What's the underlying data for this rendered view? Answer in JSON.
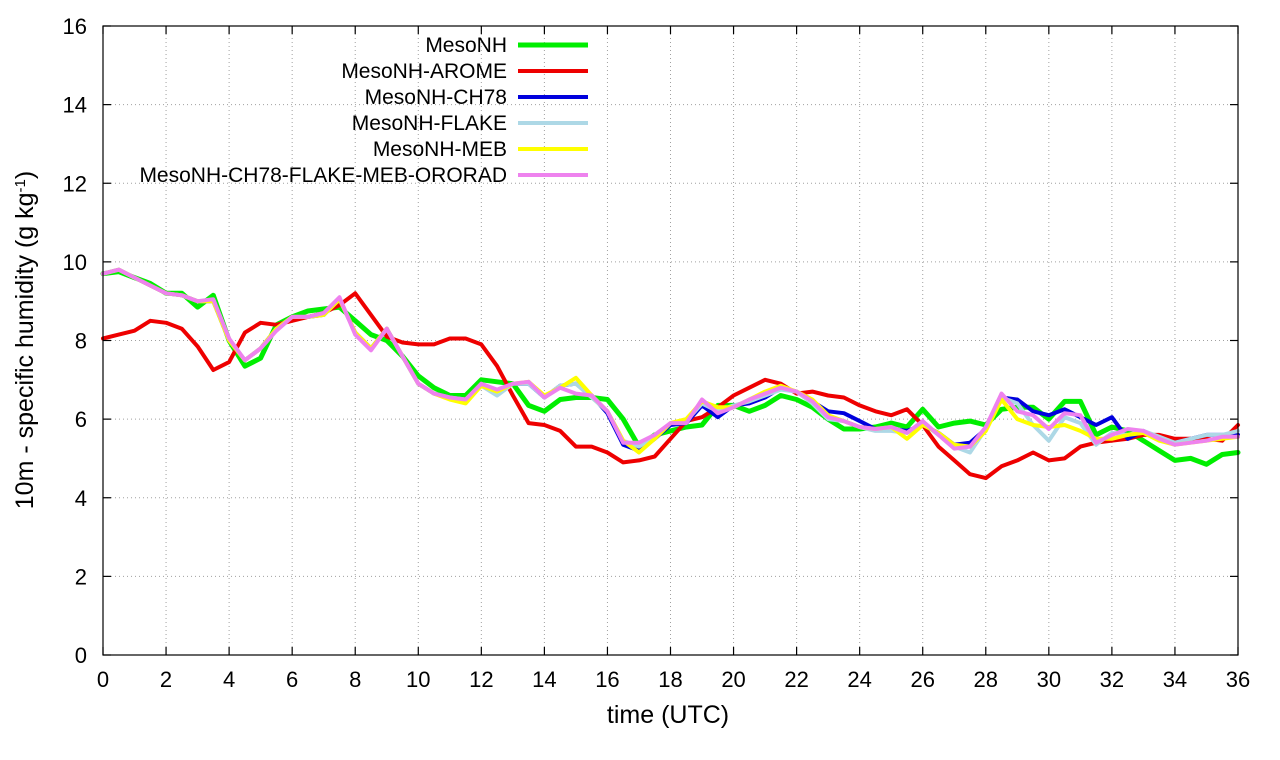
{
  "chart_data": {
    "type": "line",
    "title": "",
    "xlabel": "time (UTC)",
    "ylabel": "10m - specific humidity (g kg",
    "ylabel_superscript": "-1",
    "ylabel_suffix": ")",
    "xlim": [
      0,
      36
    ],
    "ylim": [
      0,
      16
    ],
    "xticks": [
      0,
      2,
      4,
      6,
      8,
      10,
      12,
      14,
      16,
      18,
      20,
      22,
      24,
      26,
      28,
      30,
      32,
      34,
      36
    ],
    "yticks": [
      0,
      2,
      4,
      6,
      8,
      10,
      12,
      14,
      16
    ],
    "grid": true,
    "legend_position": "top-left",
    "x": [
      0,
      0.5,
      1,
      1.5,
      2,
      2.5,
      3,
      3.5,
      4,
      4.5,
      5,
      5.5,
      6,
      6.5,
      7,
      7.5,
      8,
      8.5,
      9,
      9.5,
      10,
      10.5,
      11,
      11.5,
      12,
      12.5,
      13,
      13.5,
      14,
      14.5,
      15,
      15.5,
      16,
      16.5,
      17,
      17.5,
      18,
      18.5,
      19,
      19.5,
      20,
      20.5,
      21,
      21.5,
      22,
      22.5,
      23,
      23.5,
      24,
      24.5,
      25,
      25.5,
      26,
      26.5,
      27,
      27.5,
      28,
      28.5,
      29,
      29.5,
      30,
      30.5,
      31,
      31.5,
      32,
      32.5,
      33,
      33.5,
      34,
      34.5,
      35,
      35.5,
      36
    ],
    "series": [
      {
        "name": "MesoNH",
        "color": "#00ee00",
        "width": 5,
        "values": [
          9.7,
          9.75,
          9.6,
          9.45,
          9.2,
          9.2,
          8.85,
          9.15,
          8.0,
          7.35,
          7.55,
          8.4,
          8.6,
          8.75,
          8.8,
          8.85,
          8.5,
          8.15,
          8.0,
          7.6,
          7.1,
          6.8,
          6.6,
          6.6,
          7.0,
          6.95,
          6.9,
          6.35,
          6.2,
          6.5,
          6.55,
          6.55,
          6.5,
          6.0,
          5.3,
          5.6,
          5.7,
          5.8,
          5.85,
          6.35,
          6.35,
          6.2,
          6.35,
          6.6,
          6.5,
          6.3,
          6.0,
          5.75,
          5.75,
          5.8,
          5.9,
          5.8,
          6.25,
          5.8,
          5.9,
          5.95,
          5.85,
          6.25,
          6.3,
          6.3,
          6.0,
          6.45,
          6.45,
          5.6,
          5.8,
          5.7,
          5.45,
          5.2,
          4.95,
          5.0,
          4.85,
          5.1,
          5.15
        ]
      },
      {
        "name": "MesoNH-AROME",
        "color": "#ee0000",
        "width": 4,
        "values": [
          8.05,
          8.15,
          8.25,
          8.5,
          8.45,
          8.3,
          7.85,
          7.25,
          7.45,
          8.2,
          8.45,
          8.4,
          8.5,
          8.6,
          8.7,
          8.9,
          9.2,
          8.65,
          8.1,
          7.95,
          7.9,
          7.9,
          8.05,
          8.05,
          7.9,
          7.35,
          6.6,
          5.9,
          5.85,
          5.7,
          5.3,
          5.3,
          5.15,
          4.9,
          4.95,
          5.05,
          5.5,
          5.95,
          6.05,
          6.3,
          6.6,
          6.8,
          7.0,
          6.9,
          6.65,
          6.7,
          6.6,
          6.55,
          6.35,
          6.2,
          6.1,
          6.25,
          5.85,
          5.3,
          4.95,
          4.6,
          4.5,
          4.8,
          4.95,
          5.15,
          4.95,
          5.0,
          5.3,
          5.4,
          5.45,
          5.5,
          5.6,
          5.6,
          5.5,
          5.5,
          5.5,
          5.45,
          5.85
        ]
      },
      {
        "name": "MesoNH-CH78",
        "color": "#0000dd",
        "width": 4,
        "values": [
          9.7,
          9.8,
          9.6,
          9.4,
          9.2,
          9.15,
          9.0,
          9.0,
          8.0,
          7.5,
          7.8,
          8.3,
          8.6,
          8.6,
          8.65,
          9.05,
          8.2,
          7.8,
          8.3,
          7.6,
          6.9,
          6.65,
          6.55,
          6.5,
          6.85,
          6.7,
          6.9,
          6.9,
          6.55,
          6.85,
          6.9,
          6.6,
          6.15,
          5.35,
          5.2,
          5.5,
          5.85,
          5.9,
          6.35,
          6.05,
          6.35,
          6.4,
          6.55,
          6.8,
          6.7,
          6.45,
          6.2,
          6.15,
          5.95,
          5.75,
          5.75,
          5.7,
          5.85,
          5.65,
          5.35,
          5.4,
          5.75,
          6.55,
          6.5,
          6.2,
          6.1,
          6.25,
          6.05,
          5.85,
          6.05,
          5.5,
          5.7,
          5.5,
          5.4,
          5.5,
          5.6,
          5.6,
          5.6
        ]
      },
      {
        "name": "MesoNH-FLAKE",
        "color": "#add8e6",
        "width": 4,
        "values": [
          9.7,
          9.8,
          9.6,
          9.4,
          9.2,
          9.15,
          9.0,
          9.0,
          8.0,
          7.5,
          7.8,
          8.3,
          8.6,
          8.6,
          8.65,
          9.05,
          8.2,
          7.8,
          8.3,
          7.6,
          6.9,
          6.65,
          6.55,
          6.5,
          6.85,
          6.6,
          6.9,
          6.9,
          6.55,
          6.85,
          6.9,
          6.55,
          6.2,
          5.45,
          5.3,
          5.55,
          5.9,
          5.95,
          6.4,
          6.2,
          6.35,
          6.45,
          6.6,
          6.75,
          6.7,
          6.4,
          6.0,
          5.95,
          5.8,
          5.7,
          5.7,
          5.65,
          5.9,
          5.6,
          5.3,
          5.15,
          5.75,
          6.55,
          6.4,
          5.85,
          5.45,
          6.05,
          5.9,
          5.35,
          5.65,
          5.6,
          5.7,
          5.55,
          5.4,
          5.5,
          5.6,
          5.6,
          5.7
        ]
      },
      {
        "name": "MesoNH-MEB",
        "color": "#ffff00",
        "width": 4,
        "values": [
          9.7,
          9.8,
          9.6,
          9.4,
          9.2,
          9.15,
          9.0,
          9.0,
          8.0,
          7.5,
          7.8,
          8.3,
          8.6,
          8.6,
          8.65,
          9.05,
          8.2,
          7.8,
          8.3,
          7.6,
          6.9,
          6.65,
          6.5,
          6.4,
          6.85,
          6.7,
          6.9,
          6.95,
          6.6,
          6.8,
          7.05,
          6.6,
          6.2,
          5.45,
          5.15,
          5.5,
          5.9,
          6.0,
          6.45,
          6.3,
          6.3,
          6.5,
          6.7,
          6.85,
          6.7,
          6.5,
          6.1,
          5.95,
          5.8,
          5.75,
          5.8,
          5.5,
          5.85,
          5.65,
          5.35,
          5.3,
          5.7,
          6.5,
          6.0,
          5.85,
          5.8,
          5.85,
          5.7,
          5.5,
          5.5,
          5.6,
          5.65,
          5.45,
          5.35,
          5.4,
          5.45,
          5.5,
          5.55
        ]
      },
      {
        "name": "MesoNH-CH78-FLAKE-MEB-ORORAD",
        "color": "#ee82ee",
        "width": 4,
        "values": [
          9.7,
          9.8,
          9.6,
          9.4,
          9.2,
          9.15,
          9.0,
          9.05,
          8.05,
          7.5,
          7.8,
          8.25,
          8.6,
          8.6,
          8.7,
          9.1,
          8.15,
          7.75,
          8.3,
          7.6,
          6.9,
          6.65,
          6.55,
          6.5,
          6.9,
          6.75,
          6.9,
          6.95,
          6.55,
          6.8,
          6.65,
          6.6,
          6.2,
          5.4,
          5.4,
          5.6,
          5.9,
          5.9,
          6.5,
          6.15,
          6.3,
          6.5,
          6.65,
          6.8,
          6.7,
          6.45,
          6.05,
          5.95,
          5.8,
          5.75,
          5.8,
          5.65,
          5.95,
          5.6,
          5.25,
          5.3,
          5.8,
          6.65,
          6.2,
          6.1,
          5.75,
          6.15,
          6.1,
          5.4,
          5.6,
          5.75,
          5.7,
          5.5,
          5.35,
          5.4,
          5.45,
          5.55,
          5.55
        ]
      }
    ]
  }
}
